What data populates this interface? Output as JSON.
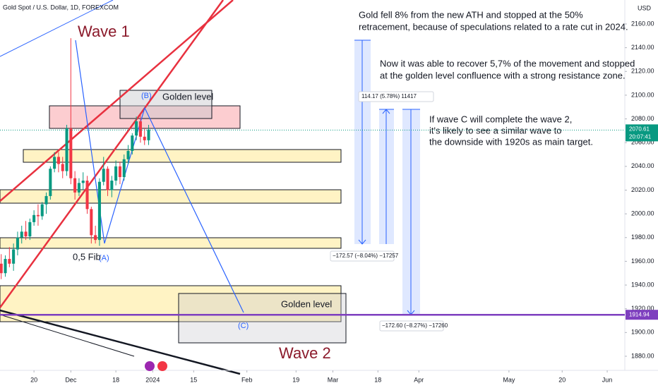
{
  "chart_data": {
    "type": "candlestick",
    "title": "Gold Spot / U.S. Dollar, 1D, FOREXCOM",
    "currency": "USD",
    "x": [
      -8,
      -7,
      -6,
      -5,
      -4,
      -3,
      -2,
      -1,
      0,
      1,
      2,
      3,
      4,
      5,
      6,
      7,
      8,
      9,
      10,
      11,
      12,
      13,
      14,
      15,
      16,
      17,
      18,
      19,
      20,
      21,
      22,
      23,
      24,
      25,
      26,
      27,
      28
    ],
    "open": [
      1958,
      1950,
      1962,
      1958,
      1970,
      1980,
      1985,
      1981,
      1993,
      1999,
      1998,
      2008,
      2015,
      2038,
      2048,
      2042,
      2036,
      2072,
      2030,
      2018,
      2026,
      2028,
      2004,
      1982,
      1978,
      2027,
      2038,
      2020,
      2028,
      2040,
      2031,
      2046,
      2053,
      2066,
      2078,
      2065,
      2062
    ],
    "high": [
      1966,
      1965,
      1972,
      1975,
      1985,
      1990,
      1994,
      1996,
      2003,
      2008,
      2010,
      2018,
      2040,
      2052,
      2052,
      2048,
      2075,
      2148,
      2036,
      2030,
      2035,
      2032,
      2006,
      1990,
      2030,
      2048,
      2040,
      2032,
      2045,
      2044,
      2050,
      2058,
      2068,
      2082,
      2085,
      2072,
      2075
    ],
    "low": [
      1945,
      1947,
      1955,
      1952,
      1965,
      1975,
      1978,
      1978,
      1990,
      1990,
      1995,
      2000,
      2012,
      2035,
      2035,
      2030,
      2032,
      2025,
      2012,
      2015,
      2020,
      2000,
      1975,
      1975,
      1973,
      2024,
      2015,
      2014,
      2024,
      2025,
      2028,
      2042,
      2050,
      2062,
      2060,
      2058,
      2058
    ],
    "close": [
      1950,
      1962,
      1958,
      1970,
      1980,
      1985,
      1981,
      1993,
      1999,
      1998,
      2008,
      2015,
      2038,
      2048,
      2042,
      2036,
      2072,
      2030,
      2018,
      2026,
      2028,
      2004,
      1982,
      1978,
      2027,
      2038,
      2020,
      2028,
      2040,
      2031,
      2046,
      2053,
      2066,
      2078,
      2065,
      2062,
      2071
    ],
    "up_color": "#089981",
    "down_color": "#f23645",
    "xlim": [
      -8.3,
      144.3
    ],
    "xticks": [
      {
        "value": 0,
        "label": "20"
      },
      {
        "value": 9,
        "label": "Dec"
      },
      {
        "value": 20,
        "label": "18"
      },
      {
        "value": 29,
        "label": "2024"
      },
      {
        "value": 39,
        "label": "15"
      },
      {
        "value": 52,
        "label": "Feb"
      },
      {
        "value": 64,
        "label": "19"
      },
      {
        "value": 73,
        "label": "Mar"
      },
      {
        "value": 84,
        "label": "18"
      },
      {
        "value": 94,
        "label": "Apr"
      },
      {
        "value": 116,
        "label": "May"
      },
      {
        "value": 129,
        "label": "20"
      },
      {
        "value": 140,
        "label": "Jun"
      }
    ],
    "ylim": [
      1868.1,
      2180.2
    ],
    "yticks": [
      {
        "value": 1880,
        "label": "1880.00"
      },
      {
        "value": 1900,
        "label": "1900.00"
      },
      {
        "value": 1920,
        "label": "1920.00"
      },
      {
        "value": 1940,
        "label": "1940.00"
      },
      {
        "value": 1960,
        "label": "1960.00"
      },
      {
        "value": 1980,
        "label": "1980.00"
      },
      {
        "value": 2000,
        "label": "2000.00"
      },
      {
        "value": 2020,
        "label": "2020.00"
      },
      {
        "value": 2040,
        "label": "2040.00"
      },
      {
        "value": 2060,
        "label": "2060.00"
      },
      {
        "value": 2080,
        "label": "2080.00"
      },
      {
        "value": 2100,
        "label": "2100.00"
      },
      {
        "value": 2120,
        "label": "2120.00"
      },
      {
        "value": 2140,
        "label": "2140.00"
      },
      {
        "value": 2160,
        "label": "2160.00"
      }
    ],
    "last_price": 2070.61,
    "countdown": "20:07:41",
    "support_line": 1914.94,
    "support_color": "#7e3fbf",
    "grid": false,
    "annotations": {
      "wave1": "Wave 1",
      "wave2": "Wave 2",
      "golden_top": "Golden level",
      "golden_bottom": "Golden level",
      "b": "(B)",
      "a": "(A)",
      "c": "(C)",
      "fib": "0,5 Fib",
      "measure_up": "114.17 (5.78%) 11417",
      "measure_down1": "−172.57 (−8.04%) −17257",
      "measure_down2": "−172.60 (−8.27%) −17260"
    },
    "notes": [
      [
        "Gold fell 8% from the new ATH and stopped at the 50%",
        "retracement, because of speculations related to a rate cut in 2024."
      ],
      [
        "Now it was able to recover 5,7% of the movement and stopped",
        "at the golden level confluence with a strong resistance zone."
      ],
      [
        "If wave C will complete the wave 2,",
        "it's likely to see a similar wave to",
        "the downside with 1920s as main target."
      ]
    ]
  }
}
